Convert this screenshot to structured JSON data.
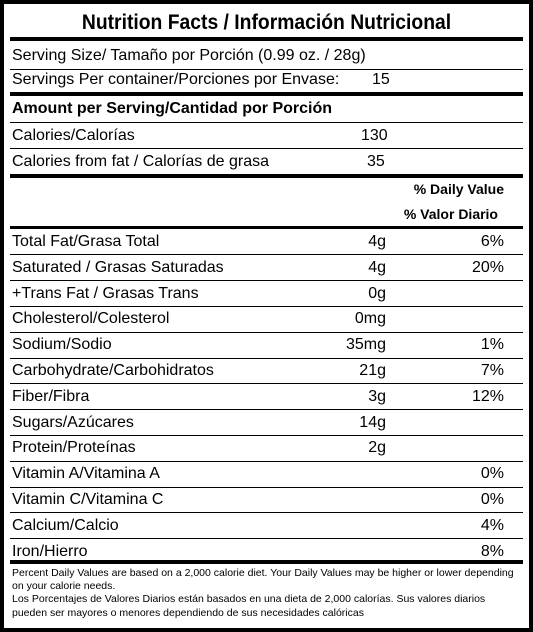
{
  "title": "Nutrition Facts / Información Nutricional",
  "serving_size": "Serving Size/ Tamaño por Porción  (0.99 oz. / 28g)",
  "servings_per_container": {
    "label": "Servings Per container/Porciones por Envase:",
    "value": "15"
  },
  "amount_header": "Amount per Serving/Cantidad por Porción",
  "calories": {
    "label": "Calories/Calorías",
    "value": "130"
  },
  "calories_from_fat": {
    "label": "Calories from fat / Calorías de grasa",
    "value": "35"
  },
  "daily_value_header": {
    "line1": "% Daily Value",
    "line2": "% Valor Diario"
  },
  "nutrients": [
    {
      "label": "Total Fat/Grasa Total",
      "amount": "4g",
      "dv": "6%"
    },
    {
      "label": "Saturated / Grasas Saturadas",
      "amount": "4g",
      "dv": "20%"
    },
    {
      "label": "+Trans Fat / Grasas Trans",
      "amount": "0g",
      "dv": ""
    },
    {
      "label": "Cholesterol/Colesterol",
      "amount": "0mg",
      "dv": ""
    },
    {
      "label": "Sodium/Sodio",
      "amount": "35mg",
      "dv": "1%"
    },
    {
      "label": "Carbohydrate/Carbohidratos",
      "amount": "21g",
      "dv": "7%"
    },
    {
      "label": "Fiber/Fibra",
      "amount": "3g",
      "dv": "12%"
    },
    {
      "label": "Sugars/Azúcares",
      "amount": "14g",
      "dv": ""
    },
    {
      "label": "Protein/Proteínas",
      "amount": "2g",
      "dv": ""
    },
    {
      "label": "Vitamin A/Vitamina A",
      "amount": "",
      "dv": "0%"
    },
    {
      "label": "Vitamin C/Vitamina C",
      "amount": "",
      "dv": "0%"
    },
    {
      "label": "Calcium/Calcio",
      "amount": "",
      "dv": "4%"
    },
    {
      "label": "Iron/Hierro",
      "amount": "",
      "dv": "8%"
    }
  ],
  "footnote": {
    "english": "Percent Daily Values are based on a 2,000 calorie diet. Your Daily Values may be higher or lower depending on your calorie needs.",
    "spanish": "Los Porcentajes de Valores Diarios están basados en una dieta de 2,000 calorías. Sus valores diarios pueden ser mayores o menores dependiendo de sus necesidades calóricas"
  }
}
